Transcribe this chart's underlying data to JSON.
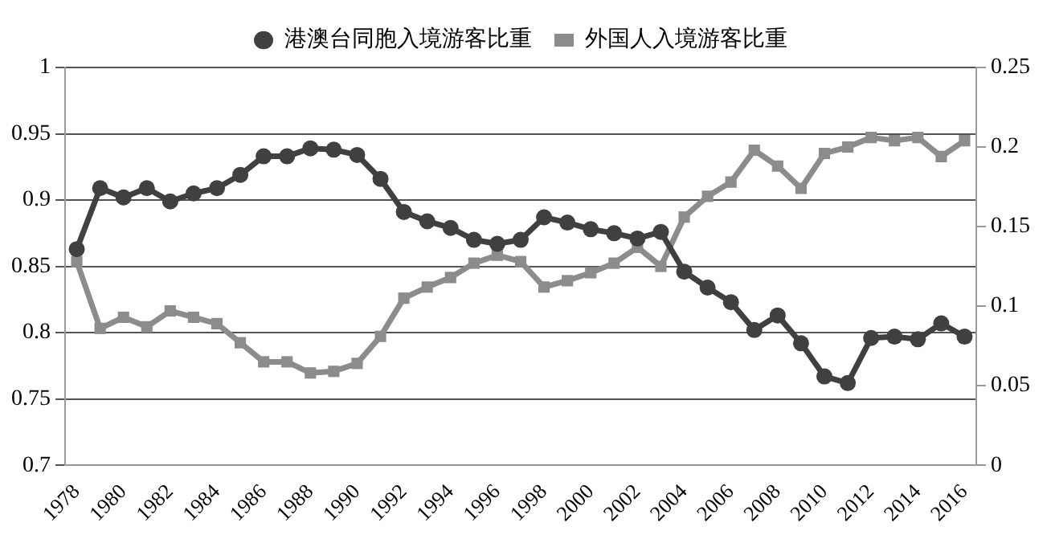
{
  "chart_data": {
    "type": "line",
    "categories": [
      "1978",
      null,
      "1980",
      null,
      "1982",
      null,
      "1984",
      null,
      "1986",
      null,
      "1988",
      null,
      "1990",
      null,
      "1992",
      null,
      "1994",
      null,
      "1996",
      null,
      "1998",
      null,
      "2000",
      null,
      "2002",
      null,
      "2004",
      null,
      "2006",
      null,
      "2008",
      null,
      "2010",
      null,
      "2012",
      null,
      "2014",
      null,
      "2016"
    ],
    "series": [
      {
        "name": "港澳台同胞入境游客比重",
        "color": "#404040",
        "marker": "circle",
        "values": [
          0.863,
          0.909,
          0.902,
          0.909,
          0.899,
          0.905,
          0.909,
          0.919,
          0.933,
          0.933,
          0.939,
          0.938,
          0.934,
          0.916,
          0.891,
          0.884,
          0.879,
          0.87,
          0.867,
          0.87,
          0.887,
          0.883,
          0.878,
          0.875,
          0.871,
          0.876,
          0.846,
          0.834,
          0.823,
          0.802,
          0.813,
          0.792,
          0.767,
          0.762,
          0.796,
          0.797,
          0.795,
          0.807,
          0.797
        ]
      },
      {
        "name": "外国人入境游客比重",
        "color": "#8c8c8c",
        "marker": "square",
        "axis": "y2",
        "values": [
          0.128,
          0.086,
          0.093,
          0.087,
          0.097,
          0.093,
          0.089,
          0.077,
          0.065,
          0.065,
          0.058,
          0.059,
          0.064,
          0.081,
          0.105,
          0.112,
          0.118,
          0.127,
          0.132,
          0.128,
          0.112,
          0.116,
          0.121,
          0.127,
          0.137,
          0.125,
          0.156,
          0.169,
          0.178,
          0.198,
          0.188,
          0.174,
          0.196,
          0.2,
          0.206,
          0.204,
          0.206,
          0.194,
          0.204
        ]
      }
    ],
    "ylim": [
      0.7,
      1
    ],
    "yticks": [
      0.7,
      0.75,
      0.8,
      0.85,
      0.9,
      0.95,
      1
    ],
    "y2lim": [
      0,
      0.25
    ],
    "y2ticks": [
      0,
      0.05,
      0.1,
      0.15,
      0.2,
      0.25
    ],
    "grid": "y",
    "legend": "top",
    "line_style": "solid"
  }
}
